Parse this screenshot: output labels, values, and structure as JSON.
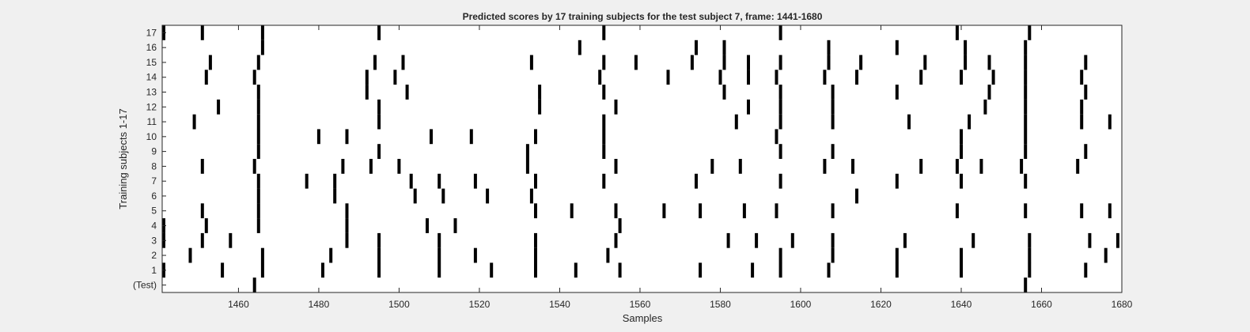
{
  "chart_data": {
    "type": "heatmap",
    "title": "Predicted scores by 17 training subjects for the test subject 7, frame: 1441-1680",
    "xlabel": "Samples",
    "ylabel": "Training subjects 1-17",
    "xlim": [
      1441,
      1680
    ],
    "x_ticks": [
      1460,
      1480,
      1500,
      1520,
      1540,
      1560,
      1580,
      1600,
      1620,
      1640,
      1660,
      1680
    ],
    "rows": [
      "(Test)",
      "1",
      "2",
      "3",
      "4",
      "5",
      "6",
      "7",
      "8",
      "9",
      "10",
      "11",
      "12",
      "13",
      "14",
      "15",
      "16",
      "17"
    ],
    "colors": {
      "on": "#000000",
      "off": "#ffffff",
      "background": "#f0f0f0"
    },
    "grid": false,
    "series": [
      {
        "name": "(Test)",
        "x": [
          1464,
          1656
        ]
      },
      {
        "name": "1",
        "x": [
          1441,
          1456,
          1466,
          1481,
          1495,
          1510,
          1523,
          1534,
          1544,
          1555,
          1575,
          1588,
          1595,
          1607,
          1624,
          1640,
          1657,
          1671
        ]
      },
      {
        "name": "2",
        "x": [
          1448,
          1466,
          1483,
          1495,
          1510,
          1519,
          1534,
          1552,
          1595,
          1608,
          1624,
          1640,
          1657,
          1676
        ]
      },
      {
        "name": "3",
        "x": [
          1441,
          1451,
          1458,
          1487,
          1495,
          1510,
          1534,
          1554,
          1582,
          1589,
          1598,
          1608,
          1626,
          1643,
          1657,
          1672,
          1679
        ]
      },
      {
        "name": "4",
        "x": [
          1441,
          1452,
          1465,
          1487,
          1507,
          1514,
          1555
        ]
      },
      {
        "name": "5",
        "x": [
          1451,
          1465,
          1487,
          1534,
          1543,
          1554,
          1566,
          1575,
          1586,
          1594,
          1608,
          1639,
          1656,
          1670,
          1677
        ]
      },
      {
        "name": "6",
        "x": [
          1465,
          1484,
          1504,
          1511,
          1522,
          1533,
          1614
        ]
      },
      {
        "name": "7",
        "x": [
          1465,
          1477,
          1484,
          1503,
          1510,
          1519,
          1534,
          1551,
          1574,
          1595,
          1624,
          1640,
          1656
        ]
      },
      {
        "name": "8",
        "x": [
          1451,
          1464,
          1486,
          1493,
          1500,
          1532,
          1554,
          1578,
          1585,
          1606,
          1613,
          1630,
          1639,
          1645,
          1655,
          1669
        ]
      },
      {
        "name": "9",
        "x": [
          1465,
          1495,
          1532,
          1551,
          1595,
          1608,
          1640,
          1656,
          1671
        ]
      },
      {
        "name": "10",
        "x": [
          1465,
          1480,
          1487,
          1508,
          1518,
          1534,
          1551,
          1594,
          1640,
          1656
        ]
      },
      {
        "name": "11",
        "x": [
          1449,
          1465,
          1495,
          1551,
          1584,
          1595,
          1608,
          1627,
          1642,
          1656,
          1670,
          1677
        ]
      },
      {
        "name": "12",
        "x": [
          1455,
          1465,
          1495,
          1535,
          1554,
          1587,
          1595,
          1608,
          1646,
          1656,
          1670
        ]
      },
      {
        "name": "13",
        "x": [
          1465,
          1492,
          1502,
          1535,
          1551,
          1581,
          1595,
          1608,
          1624,
          1647,
          1656,
          1671
        ]
      },
      {
        "name": "14",
        "x": [
          1452,
          1464,
          1492,
          1499,
          1550,
          1567,
          1580,
          1587,
          1594,
          1606,
          1614,
          1630,
          1640,
          1648,
          1656,
          1670
        ]
      },
      {
        "name": "15",
        "x": [
          1453,
          1465,
          1494,
          1501,
          1533,
          1551,
          1559,
          1573,
          1581,
          1587,
          1595,
          1607,
          1615,
          1631,
          1641,
          1647,
          1656,
          1671
        ]
      },
      {
        "name": "16",
        "x": [
          1466,
          1545,
          1574,
          1581,
          1607,
          1624,
          1641,
          1656
        ]
      },
      {
        "name": "17",
        "x": [
          1441,
          1451,
          1466,
          1495,
          1551,
          1595,
          1639,
          1657
        ]
      }
    ]
  }
}
